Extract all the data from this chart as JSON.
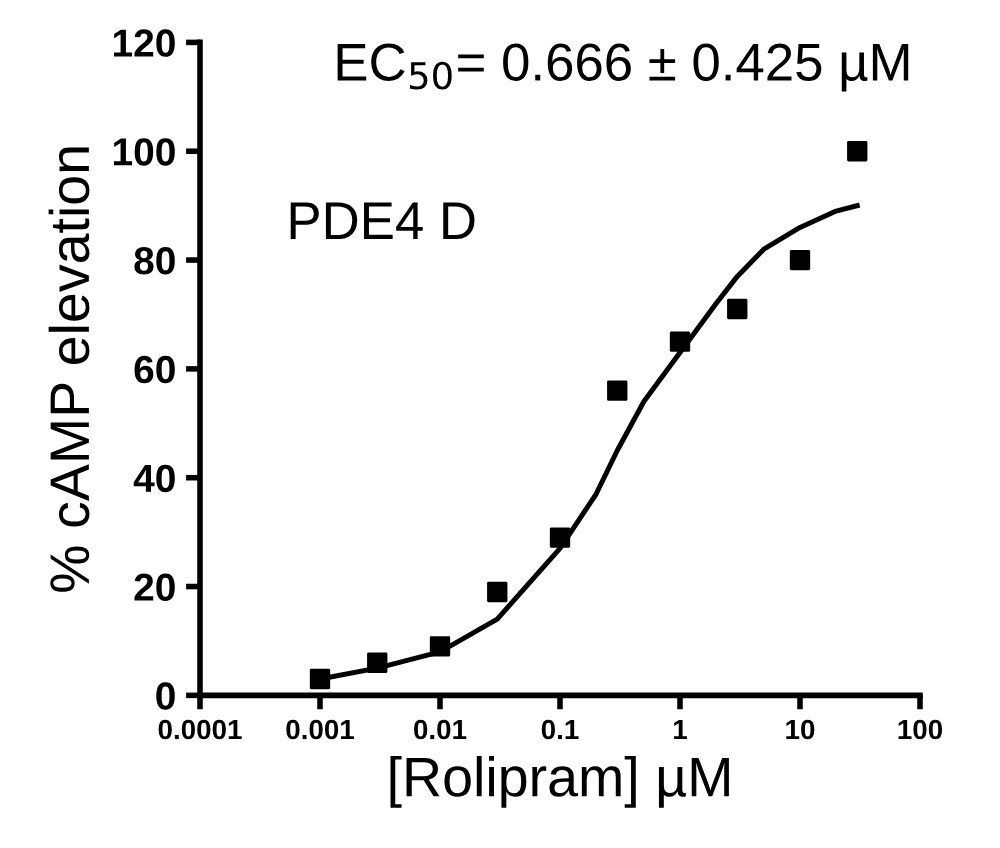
{
  "chart_data": {
    "type": "scatter",
    "xlabel": "[Rolipram] µM",
    "ylabel": "% cAMP elevation",
    "annotations": [
      "EC$_{50}$= 0.666 ± 0.425 µM",
      "PDE4 D"
    ],
    "log": "x",
    "xlim": [
      0.0001,
      100
    ],
    "xticks": [
      0.0001,
      0.001,
      0.01,
      0.1,
      1,
      10,
      100
    ],
    "ylim": [
      0,
      120
    ],
    "yticks": [
      0,
      20,
      40,
      60,
      80,
      100,
      120
    ],
    "grid": false,
    "legend": false,
    "series": [
      {
        "color": "#000000",
        "marker": "square",
        "x": [
          0.001,
          0.003,
          0.01,
          0.03,
          0.1,
          0.3,
          1,
          3,
          10,
          30
        ],
        "values": [
          3,
          6,
          9,
          19,
          29,
          56,
          65,
          71,
          80,
          100
        ]
      },
      {
        "type": "line",
        "color": "#000000",
        "marker": "none",
        "line_style": "solid",
        "x": [
          0.001,
          0.003,
          0.01,
          0.03,
          0.1,
          0.2,
          0.3,
          0.5,
          1,
          2,
          3,
          5,
          10,
          20,
          30
        ],
        "values": [
          3,
          5,
          8,
          14,
          27,
          37,
          45,
          54,
          63,
          72,
          77,
          82,
          86,
          89,
          90
        ]
      }
    ]
  }
}
